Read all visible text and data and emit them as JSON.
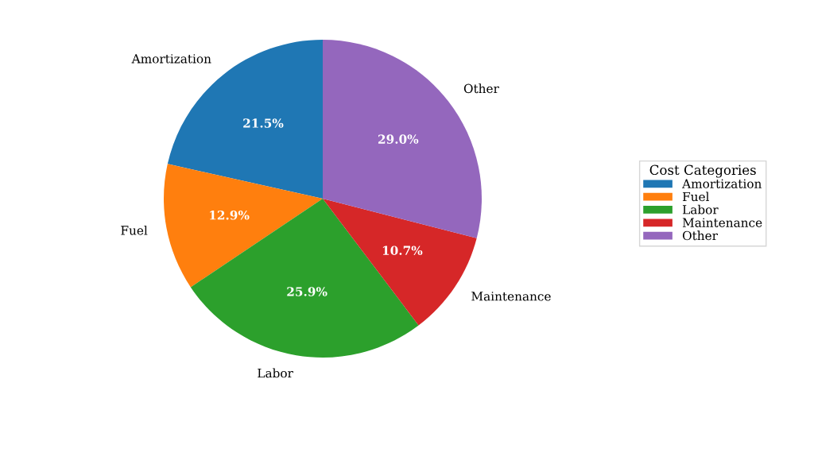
{
  "chart_data": {
    "type": "pie",
    "categories": [
      "Amortization",
      "Fuel",
      "Labor",
      "Maintenance",
      "Other"
    ],
    "values": [
      21.5,
      12.9,
      25.9,
      10.7,
      29.0
    ],
    "colors": [
      "#1f77b4",
      "#ff7f0e",
      "#2ca02c",
      "#d62728",
      "#9467bd"
    ],
    "value_labels": [
      "21.5%",
      "12.9%",
      "25.9%",
      "10.7%",
      "29.0%"
    ],
    "legend_title": "Cost Categories",
    "legend": "right"
  }
}
